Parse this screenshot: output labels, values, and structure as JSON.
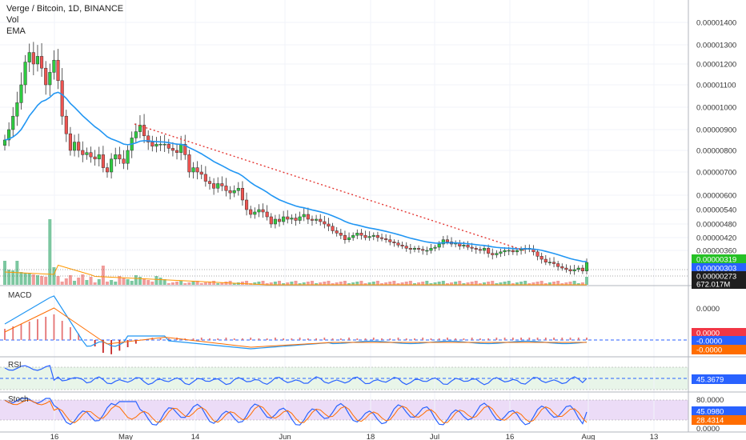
{
  "header": {
    "title": "Verge / Bitcoin, 1D, BINANCE",
    "vol_label": "Vol",
    "ema_label": "EMA"
  },
  "panels": {
    "macd_label": "MACD",
    "rsi_label": "RSI",
    "stoch_label": "Stoch"
  },
  "colors": {
    "up": "#26a69a",
    "down": "#ef5350",
    "up_bright": "#2ecc40",
    "ema": "#2196f3",
    "trend": "#e53935",
    "macd_line": "#2196f3",
    "signal_line": "#ff6d00",
    "rsi_fill": "#e8f5e9",
    "stoch_fill": "#ecdcf7",
    "badge_green": "#26c126",
    "badge_blue": "#2962ff",
    "badge_red": "#f23645",
    "badge_orange": "#ff6d00",
    "badge_dark": "#1e1e1e"
  },
  "chart_data": {
    "type": "candlestick",
    "title": "Verge / Bitcoin, 1D, BINANCE",
    "price_axis": [
      "0.00001400",
      "0.00001300",
      "0.00001200",
      "0.00001100",
      "0.00001000",
      "0.00000900",
      "0.00000800",
      "0.00000700",
      "0.00000600",
      "0.00000540",
      "0.00000480",
      "0.00000420",
      "0.00000360"
    ],
    "x_ticks": [
      "16",
      "May",
      "14",
      "Jun",
      "18",
      "Jul",
      "16",
      "Aug",
      "13"
    ],
    "price_badges": {
      "last": "0.00000319",
      "ema": "0.00000303",
      "low": "0.00000273",
      "volume": "672.017M"
    },
    "macd_axis": [
      "0.0000"
    ],
    "macd_badges": [
      "0.0000",
      "-0.0000",
      "-0.0000"
    ],
    "rsi_axis": [],
    "rsi_badge": "45.3679",
    "stoch_axis": [
      "80.0000",
      "0.0000"
    ],
    "stoch_badges": [
      "45.0980",
      "28.4314"
    ],
    "closes": [
      8.5e-06,
      9e-06,
      9.6e-06,
      1.02e-05,
      1.1e-05,
      1.21e-05,
      1.26e-05,
      1.2e-05,
      1.24e-05,
      1.18e-05,
      1.1e-05,
      1.16e-05,
      1.22e-05,
      1.12e-05,
      9.6e-06,
      8.8e-06,
      8e-06,
      8.4e-06,
      8e-06,
      7.8e-06,
      7.9e-06,
      7.7e-06,
      7.6e-06,
      7.8e-06,
      7.2e-06,
      7e-06,
      7.6e-06,
      7.8e-06,
      7.6e-06,
      7.4e-06,
      8e-06,
      8.6e-06,
      8.9e-06,
      9.2e-06,
      8.7e-06,
      8.4e-06,
      8.2e-06,
      8.3e-06,
      8.3e-06,
      8.3e-06,
      8.1e-06,
      8e-06,
      7.9e-06,
      8.3e-06,
      7.8e-06,
      7e-06,
      7.2e-06,
      7e-06,
      6.9e-06,
      6.6e-06,
      6.5e-06,
      6.3e-06,
      6.5e-06,
      6.4e-06,
      6.2e-06,
      6.1e-06,
      6.2e-06,
      6.3e-06,
      5.8e-06,
      5.4e-06,
      5.2e-06,
      5.3e-06,
      5.4e-06,
      5.3e-06,
      5.1e-06,
      4.8e-06,
      5e-06,
      4.9e-06,
      5.1e-06,
      5e-06,
      5.05e-06,
      4.95e-06,
      5.1e-06,
      5.2e-06,
      5e-06,
      4.95e-06,
      5e-06,
      4.9e-06,
      4.8e-06,
      4.7e-06,
      4.5e-06,
      4.4e-06,
      4.3e-06,
      4.1e-06,
      4.2e-06,
      4.3e-06,
      4.4e-06,
      4.3e-06,
      4.2e-06,
      4.25e-06,
      4.3e-06,
      4.2e-06,
      4.15e-06,
      4.1e-06,
      4e-06,
      3.95e-06,
      3.85e-06,
      3.8e-06,
      3.7e-06,
      3.65e-06,
      3.7e-06,
      3.65e-06,
      3.6e-06,
      3.6e-06,
      3.7e-06,
      3.75e-06,
      3.9e-06,
      4.1e-06,
      4e-06,
      3.9e-06,
      3.95e-06,
      3.8e-06,
      3.85e-06,
      3.75e-06,
      3.7e-06,
      3.65e-06,
      3.6e-06,
      3.7e-06,
      3.5e-06,
      3.45e-06,
      3.5e-06,
      3.55e-06,
      3.6e-06,
      3.6e-06,
      3.55e-06,
      3.6e-06,
      3.65e-06,
      3.7e-06,
      3.65e-06,
      3.55e-06,
      3.4e-06,
      3.3e-06,
      3.2e-06,
      3.2e-06,
      3.15e-06,
      3.05e-06,
      3e-06,
      2.95e-06,
      2.9e-06,
      2.95e-06,
      3e-06,
      2.9e-06,
      3.19e-06
    ]
  }
}
